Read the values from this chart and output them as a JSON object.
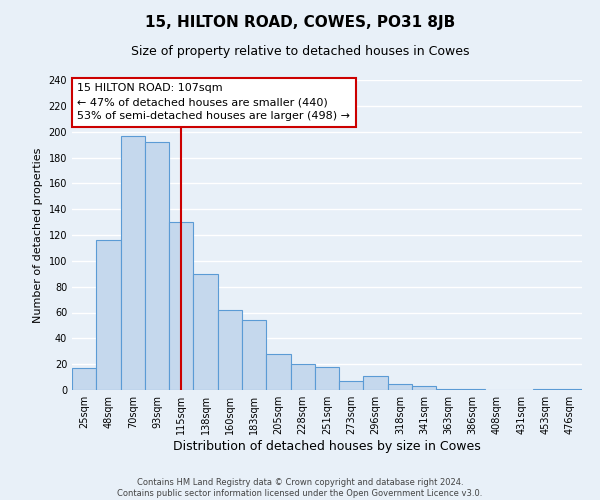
{
  "title": "15, HILTON ROAD, COWES, PO31 8JB",
  "subtitle": "Size of property relative to detached houses in Cowes",
  "xlabel": "Distribution of detached houses by size in Cowes",
  "ylabel": "Number of detached properties",
  "categories": [
    "25sqm",
    "48sqm",
    "70sqm",
    "93sqm",
    "115sqm",
    "138sqm",
    "160sqm",
    "183sqm",
    "205sqm",
    "228sqm",
    "251sqm",
    "273sqm",
    "296sqm",
    "318sqm",
    "341sqm",
    "363sqm",
    "386sqm",
    "408sqm",
    "431sqm",
    "453sqm",
    "476sqm"
  ],
  "values": [
    17,
    116,
    197,
    192,
    130,
    90,
    62,
    54,
    28,
    20,
    18,
    7,
    11,
    5,
    3,
    1,
    1,
    0,
    0,
    1,
    1
  ],
  "bar_color": "#c5d8ed",
  "bar_edge_color": "#5b9bd5",
  "background_color": "#e8f0f8",
  "grid_color": "#ffffff",
  "vline_position": 4.5,
  "vline_color": "#cc0000",
  "annotation_title": "15 HILTON ROAD: 107sqm",
  "annotation_line1": "← 47% of detached houses are smaller (440)",
  "annotation_line2": "53% of semi-detached houses are larger (498) →",
  "annotation_box_color": "#ffffff",
  "annotation_box_edge": "#cc0000",
  "footer_line1": "Contains HM Land Registry data © Crown copyright and database right 2024.",
  "footer_line2": "Contains public sector information licensed under the Open Government Licence v3.0.",
  "ylim": [
    0,
    240
  ],
  "yticks": [
    0,
    20,
    40,
    60,
    80,
    100,
    120,
    140,
    160,
    180,
    200,
    220,
    240
  ],
  "title_fontsize": 11,
  "subtitle_fontsize": 9,
  "xlabel_fontsize": 9,
  "ylabel_fontsize": 8,
  "tick_fontsize": 7,
  "footer_fontsize": 6,
  "annotation_fontsize": 8
}
